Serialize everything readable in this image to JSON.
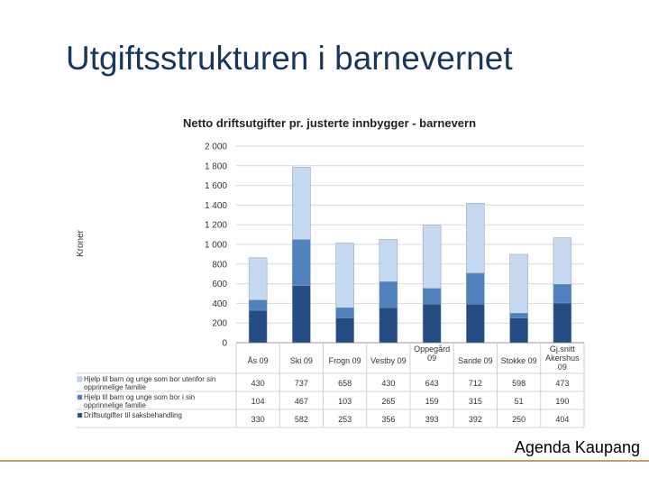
{
  "slide": {
    "title": "Utgiftsstrukturen i barnevernet",
    "footer": "Agenda Kaupang",
    "footer_line_color": "#c9a15a"
  },
  "chart_data": {
    "type": "bar",
    "stacked": true,
    "title": "Netto driftsutgifter pr. justerte innbygger - barnevern",
    "ylabel": "Kroner",
    "ylim": [
      0,
      2000
    ],
    "yticks": [
      0,
      200,
      400,
      600,
      800,
      1000,
      1200,
      1400,
      1600,
      1800,
      2000
    ],
    "ytick_labels": [
      "0",
      "200",
      "400",
      "600",
      "800",
      "1 000",
      "1 200",
      "1 400",
      "1 600",
      "1 800",
      "2 000"
    ],
    "grid": true,
    "legend": "table-left",
    "categories": [
      [
        "Ås 09"
      ],
      [
        "Ski 09"
      ],
      [
        "Frogn 09"
      ],
      [
        "Vestby 09"
      ],
      [
        "Oppegård",
        "09"
      ],
      [
        "Sande 09"
      ],
      [
        "Stokke 09"
      ],
      [
        "Gj.snitt",
        "Akershus",
        "09"
      ]
    ],
    "series": [
      {
        "name": "Driftsutgifter til saksbehandling",
        "color": "#244c83",
        "values": [
          330,
          582,
          253,
          356,
          393,
          392,
          250,
          404
        ]
      },
      {
        "name": "Hjelp til barn og unge som bor i sin opprinnelige familie",
        "color": "#4f81bd",
        "values": [
          104,
          467,
          103,
          265,
          159,
          315,
          51,
          190
        ]
      },
      {
        "name": "Hjelp til barn og unge som bor utenfor sin opprinnelige familie",
        "color": "#c6d9f1",
        "values": [
          430,
          737,
          658,
          430,
          643,
          712,
          598,
          473
        ]
      }
    ],
    "table_rows": [
      {
        "label_lines": [
          "Hjelp til barn og unge som bor utenfor sin",
          "opprinnelige familie"
        ],
        "series_index": 2
      },
      {
        "label_lines": [
          "Hjelp til barn og unge som bor i sin",
          "opprinnelige familie"
        ],
        "series_index": 1
      },
      {
        "label_lines": [
          "Driftsutgifter til saksbehandling"
        ],
        "series_index": 0
      }
    ]
  }
}
